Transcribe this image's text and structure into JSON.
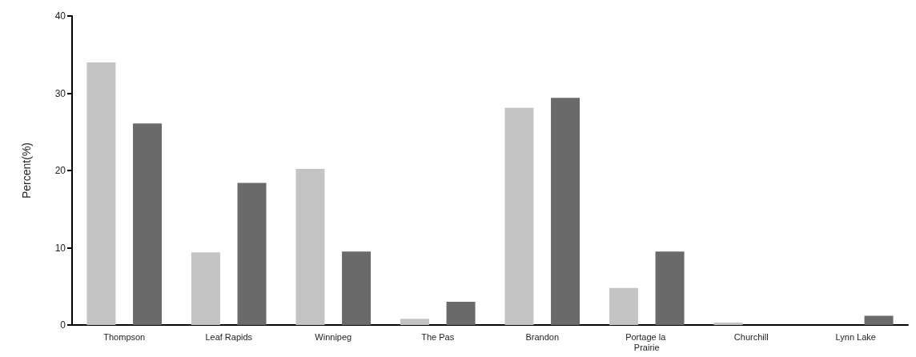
{
  "chart_data": {
    "type": "bar",
    "ylabel": "Percent(%)",
    "categories": [
      "Thompson",
      "Leaf Rapids",
      "Winnipeg",
      "The Pas",
      "Brandon",
      "Portage la Prairie",
      "Churchill",
      "Lynn Lake"
    ],
    "series": [
      {
        "color": "#c4c4c4",
        "values": [
          34.0,
          9.4,
          20.2,
          0.8,
          28.1,
          4.8,
          0.3,
          0
        ]
      },
      {
        "color": "#6a6a6a",
        "values": [
          26.1,
          18.4,
          9.5,
          3.0,
          29.4,
          9.5,
          0,
          1.2
        ]
      }
    ],
    "ylim": [
      0,
      40
    ],
    "yticks": [
      0,
      10,
      20,
      30,
      40
    ],
    "grid": false
  }
}
